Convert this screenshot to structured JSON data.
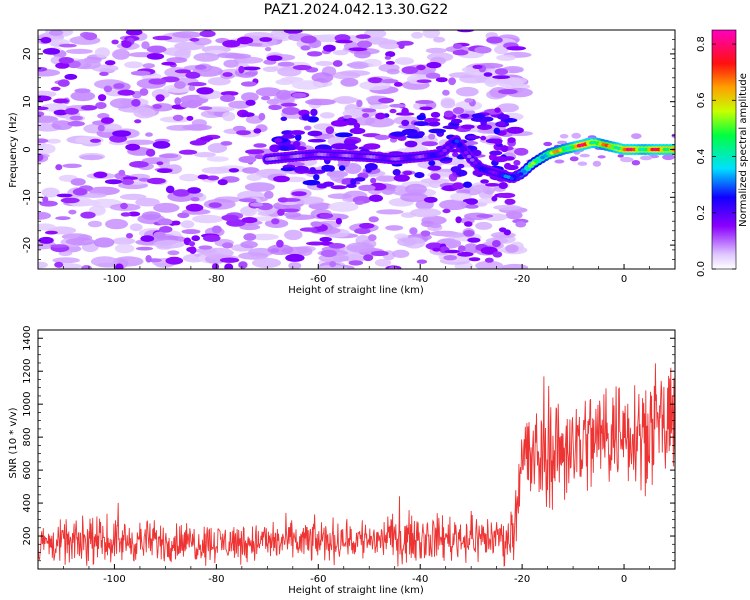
{
  "title": "PAZ1.2024.042.13.30.G22",
  "chart_data": [
    {
      "type": "heatmap",
      "title": "PAZ1.2024.042.13.30.G22",
      "xlabel": "Height of straight line (km)",
      "ylabel": "Frequency (Hz)",
      "xlim": [
        -115,
        10
      ],
      "ylim": [
        -25,
        25
      ],
      "x_ticks": [
        -100,
        -80,
        -60,
        -40,
        -20,
        0
      ],
      "x_tick_labels": [
        "-100",
        "-80",
        "-60",
        "-40",
        "-20",
        "0"
      ],
      "y_ticks": [
        -20,
        -10,
        0,
        10,
        20
      ],
      "y_tick_labels": [
        "-20",
        "-10",
        "0",
        "10",
        "20"
      ],
      "colorbar": {
        "label": "Normalized spectral amplitude",
        "range": [
          0,
          0.85
        ],
        "ticks": [
          0.0,
          0.2,
          0.4,
          0.6,
          0.8
        ],
        "tick_labels": [
          "0.0",
          "0.2",
          "0.4",
          "0.6",
          "0.8"
        ],
        "colormap": "gist_rainbow_r-like (purple→blue→cyan→green→yellow→red→magenta)"
      },
      "noise_region_x": [
        -115,
        -20
      ],
      "ridge": {
        "description": "frequency of maximum amplitude vs height",
        "x": [
          -70,
          -60,
          -50,
          -45,
          -40,
          -36,
          -33,
          -30,
          -28,
          -25,
          -22,
          -20,
          -18,
          -15,
          -12,
          -10,
          -8,
          -6,
          -4,
          -2,
          0,
          2,
          4,
          6,
          8,
          10
        ],
        "y": [
          -2,
          -1,
          -1.5,
          -2,
          -1.5,
          -1,
          2,
          -2,
          -4,
          -5,
          -6,
          -5,
          -3,
          -1,
          0,
          0.5,
          1,
          1.5,
          1,
          0.5,
          0,
          0,
          0,
          0,
          0,
          0
        ],
        "amplitude": [
          0.15,
          0.18,
          0.18,
          0.2,
          0.22,
          0.25,
          0.3,
          0.2,
          0.25,
          0.3,
          0.35,
          0.45,
          0.55,
          0.65,
          0.7,
          0.75,
          0.85,
          0.8,
          0.7,
          0.75,
          0.85,
          0.8,
          0.75,
          0.8,
          0.85,
          0.85
        ]
      }
    },
    {
      "type": "line",
      "xlabel": "Height of straight line (km)",
      "ylabel": "SNR (10 * v/v)",
      "xlim": [
        -115,
        10
      ],
      "ylim": [
        0,
        1450
      ],
      "x_ticks": [
        -100,
        -80,
        -60,
        -40,
        -20,
        0
      ],
      "x_tick_labels": [
        "-100",
        "-80",
        "-60",
        "-40",
        "-20",
        "0"
      ],
      "y_ticks": [
        200,
        400,
        600,
        800,
        1000,
        1200,
        1400
      ],
      "y_tick_labels": [
        "200",
        "400",
        "600",
        "800",
        "1000",
        "1200",
        "1400"
      ],
      "color": "#ee3333",
      "series_summary": {
        "x": [
          -115,
          -100,
          -80,
          -60,
          -40,
          -22,
          -20,
          -18,
          -15,
          -10,
          -5,
          0,
          5,
          10
        ],
        "y_mean": [
          150,
          170,
          160,
          170,
          190,
          190,
          700,
          650,
          700,
          750,
          800,
          850,
          850,
          850
        ],
        "y_spread": [
          160,
          170,
          160,
          170,
          190,
          190,
          450,
          450,
          450,
          450,
          450,
          450,
          450,
          450
        ]
      }
    }
  ]
}
